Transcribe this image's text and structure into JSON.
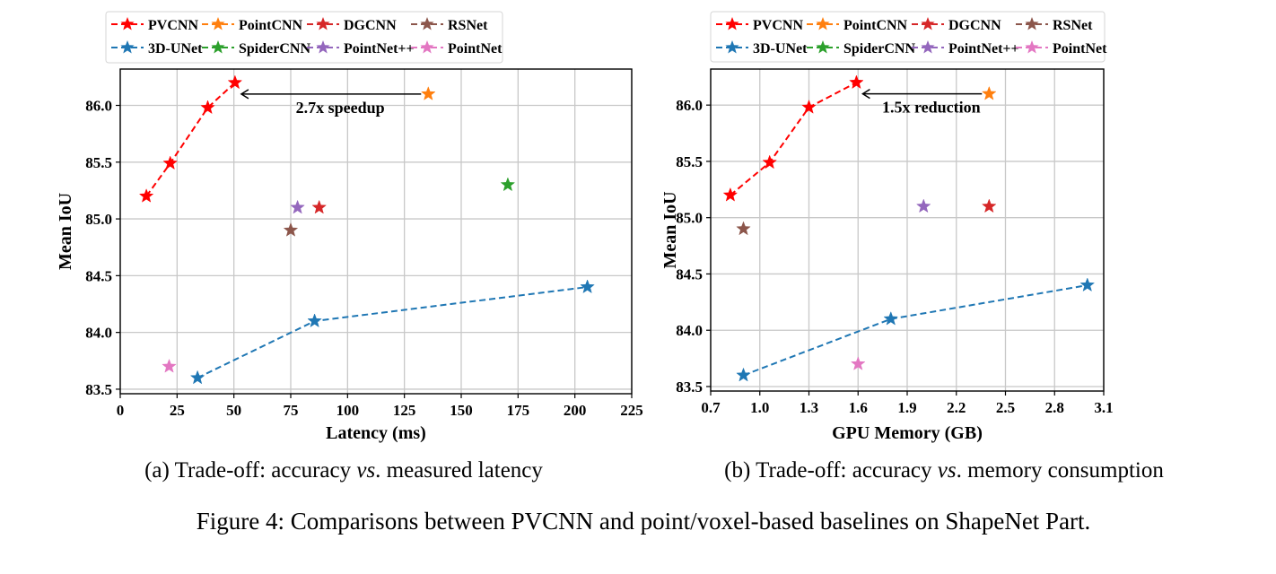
{
  "chart_data": [
    {
      "type": "scatter",
      "xlabel": "Latency (ms)",
      "ylabel": "Mean IoU",
      "xlim": [
        0,
        225
      ],
      "ylim": [
        83.46,
        86.32
      ],
      "xticks": [
        0,
        25,
        50,
        75,
        100,
        125,
        150,
        175,
        200,
        225
      ],
      "yticks": [
        83.5,
        84.0,
        84.5,
        85.0,
        85.5,
        86.0
      ],
      "grid": true,
      "legend_placement": "top, above plot",
      "annotation": {
        "text": "2.7x speedup",
        "from": [
          135.5,
          86.1
        ],
        "to": [
          50.5,
          86.1
        ]
      },
      "series": [
        {
          "name": "PVCNN",
          "color": "#ff0000",
          "line": "dashed",
          "x": [
            11.5,
            22,
            38.5,
            50.5
          ],
          "y": [
            85.2,
            85.49,
            85.98,
            86.2
          ]
        },
        {
          "name": "3D-UNet",
          "color": "#1f77b4",
          "line": "dashed",
          "x": [
            34,
            85.5,
            205.5
          ],
          "y": [
            83.6,
            84.1,
            84.4
          ]
        },
        {
          "name": "PointCNN",
          "color": "#ff7f0e",
          "line": "dashed",
          "x": [
            135.5
          ],
          "y": [
            86.1
          ]
        },
        {
          "name": "SpiderCNN",
          "color": "#2ca02c",
          "line": "dashed",
          "x": [
            170.5
          ],
          "y": [
            85.3
          ]
        },
        {
          "name": "DGCNN",
          "color": "#d62728",
          "line": "dashed",
          "x": [
            87.5
          ],
          "y": [
            85.1
          ]
        },
        {
          "name": "PointNet++",
          "color": "#9467bd",
          "line": "dashed",
          "x": [
            78
          ],
          "y": [
            85.1
          ]
        },
        {
          "name": "RSNet",
          "color": "#8c564b",
          "line": "dashed",
          "x": [
            75
          ],
          "y": [
            84.9
          ]
        },
        {
          "name": "PointNet",
          "color": "#e377c2",
          "line": "dashed",
          "x": [
            21.5
          ],
          "y": [
            83.7
          ]
        }
      ],
      "caption": "(a) Trade-off: accuracy vs. measured latency"
    },
    {
      "type": "scatter",
      "xlabel": "GPU Memory (GB)",
      "ylabel": "Mean IoU",
      "xlim": [
        0.7,
        3.1
      ],
      "ylim": [
        83.46,
        86.32
      ],
      "xticks": [
        0.7,
        1.0,
        1.3,
        1.6,
        1.9,
        2.2,
        2.5,
        2.8,
        3.1
      ],
      "yticks": [
        83.5,
        84.0,
        84.5,
        85.0,
        85.5,
        86.0
      ],
      "grid": true,
      "legend_placement": "top, above plot",
      "annotation": {
        "text": "1.5x reduction",
        "from": [
          2.4,
          86.1
        ],
        "to": [
          1.59,
          86.1
        ]
      },
      "series": [
        {
          "name": "PVCNN",
          "color": "#ff0000",
          "line": "dashed",
          "x": [
            0.82,
            1.06,
            1.3,
            1.59
          ],
          "y": [
            85.2,
            85.49,
            85.98,
            86.2
          ]
        },
        {
          "name": "3D-UNet",
          "color": "#1f77b4",
          "line": "dashed",
          "x": [
            0.9,
            1.8,
            3.0
          ],
          "y": [
            83.6,
            84.1,
            84.4
          ]
        },
        {
          "name": "PointCNN",
          "color": "#ff7f0e",
          "line": "dashed",
          "x": [
            2.4
          ],
          "y": [
            86.1
          ]
        },
        {
          "name": "SpiderCNN",
          "color": "#2ca02c",
          "line": "dashed",
          "x": [],
          "y": []
        },
        {
          "name": "DGCNN",
          "color": "#d62728",
          "line": "dashed",
          "x": [
            2.4
          ],
          "y": [
            85.1
          ]
        },
        {
          "name": "PointNet++",
          "color": "#9467bd",
          "line": "dashed",
          "x": [
            2.0
          ],
          "y": [
            85.1
          ]
        },
        {
          "name": "RSNet",
          "color": "#8c564b",
          "line": "dashed",
          "x": [
            0.9
          ],
          "y": [
            84.9
          ]
        },
        {
          "name": "PointNet",
          "color": "#e377c2",
          "line": "dashed",
          "x": [
            1.6
          ],
          "y": [
            83.7
          ]
        }
      ],
      "caption": "(b) Trade-off: accuracy vs. memory consumption"
    }
  ],
  "captions": {
    "a_prefix": "(a) Trade-off: accuracy ",
    "a_vs": "vs",
    "a_suffix": ". measured latency",
    "b_prefix": "(b) Trade-off: accuracy ",
    "b_vs": "vs",
    "b_suffix": ". memory consumption",
    "figure": "Figure 4: Comparisons between PVCNN and point/voxel-based baselines on ShapeNet Part."
  }
}
